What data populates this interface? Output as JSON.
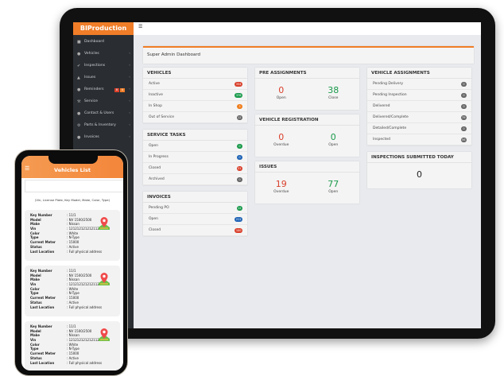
{
  "app": {
    "logo": "BIProduction",
    "menu_icon": "hamburger-icon"
  },
  "sidebar": {
    "items": [
      {
        "label": "Dashboard",
        "icon": "dashboard-icon"
      },
      {
        "label": "Vehicles",
        "icon": "car-icon"
      },
      {
        "label": "Inspections",
        "icon": "check-circle-icon"
      },
      {
        "label": "Issues",
        "icon": "warning-icon"
      },
      {
        "label": "Reminders",
        "icon": "bell-icon",
        "badges": [
          "8",
          "0"
        ]
      },
      {
        "label": "Service",
        "icon": "wrench-icon"
      },
      {
        "label": "Contact & Users",
        "icon": "users-icon"
      },
      {
        "label": "Parts & Inventory",
        "icon": "gear-icon"
      },
      {
        "label": "Invoices",
        "icon": "invoice-icon"
      }
    ]
  },
  "dashboard": {
    "title": "Super Admin Dashboard",
    "vehicles": {
      "title": "VEHICLES",
      "rows": [
        {
          "label": "Active",
          "count": "334",
          "color": "#d9402b"
        },
        {
          "label": "Inactive",
          "count": "376",
          "color": "#1a9a4b"
        },
        {
          "label": "In Shop",
          "count": "3",
          "color": "#f07d1a"
        },
        {
          "label": "Out of Service",
          "count": "12",
          "color": "#666666"
        }
      ]
    },
    "service_tasks": {
      "title": "SERVICE TASKS",
      "rows": [
        {
          "label": "Open",
          "count": "0",
          "color": "#1a9a4b"
        },
        {
          "label": "In Progress",
          "count": "0",
          "color": "#1f63b5"
        },
        {
          "label": "Closed",
          "count": "31",
          "color": "#d9402b"
        },
        {
          "label": "Archived",
          "count": "0",
          "color": "#666666"
        }
      ]
    },
    "invoices": {
      "title": "INVOICES",
      "rows": [
        {
          "label": "Pending PO",
          "count": "12",
          "color": "#1a9a4b"
        },
        {
          "label": "Open",
          "count": "211",
          "color": "#1f63b5"
        },
        {
          "label": "Closed",
          "count": "100",
          "color": "#d9402b"
        }
      ]
    },
    "pre_assignments": {
      "title": "PRE ASSIGNMENTS",
      "stats": [
        {
          "value": "0",
          "label": "Open",
          "color": "#d9402b"
        },
        {
          "value": "38",
          "label": "Close",
          "color": "#1a9a4b"
        }
      ]
    },
    "vehicle_registration": {
      "title": "VEHICLE REGISTRATION",
      "stats": [
        {
          "value": "0",
          "label": "Overdue",
          "color": "#d9402b"
        },
        {
          "value": "0",
          "label": "Open",
          "color": "#1a9a4b"
        }
      ]
    },
    "issues": {
      "title": "ISSUES",
      "stats": [
        {
          "value": "19",
          "label": "Overdue",
          "color": "#d9402b"
        },
        {
          "value": "77",
          "label": "Open",
          "color": "#1a9a4b"
        }
      ]
    },
    "vehicle_assignments": {
      "title": "VEHICLE ASSIGNMENTS",
      "rows": [
        {
          "label": "Pending Delivery",
          "count": "0",
          "color": "#666666"
        },
        {
          "label": "Pending Inspection",
          "count": "0",
          "color": "#666666"
        },
        {
          "label": "Delivered",
          "count": "0",
          "color": "#666666"
        },
        {
          "label": "Delivered/Complete",
          "count": "79",
          "color": "#666666"
        },
        {
          "label": "Detailed/Complete",
          "count": "0",
          "color": "#666666"
        },
        {
          "label": "Inspected",
          "count": "56",
          "color": "#666666"
        }
      ]
    },
    "inspections_today": {
      "title": "INSPECTIONS SUBMITTED TODAY",
      "value": "0"
    }
  },
  "phone": {
    "title": "Vehicles List",
    "search_placeholder": "",
    "hint": "(Vin, License Plate, Key Model, Make, Color, Type)",
    "fields": [
      "Key Number",
      "Model",
      "Make",
      "Vin",
      "Color",
      "Type",
      "Current Meter",
      "Status",
      "Last Location"
    ],
    "vehicles": [
      [
        ": 11/1",
        ": NV 1500/2500",
        ": Nissan",
        ": 121212121212112",
        ": White",
        ": N-Type",
        ": 15000",
        ": Active",
        ": Full physical address"
      ],
      [
        ": 11/1",
        ": NV 1500/2500",
        ": Nissan",
        ": 121212121212112",
        ": White",
        ": N-Type",
        ": 15000",
        ": Active",
        ": Full physical address"
      ],
      [
        ": 11/1",
        ": NV 1500/2500",
        ": Nissan",
        ": 121212121212112",
        ": White",
        ": N-Type",
        ": 15000",
        ": Active",
        ": Full physical address"
      ]
    ]
  }
}
